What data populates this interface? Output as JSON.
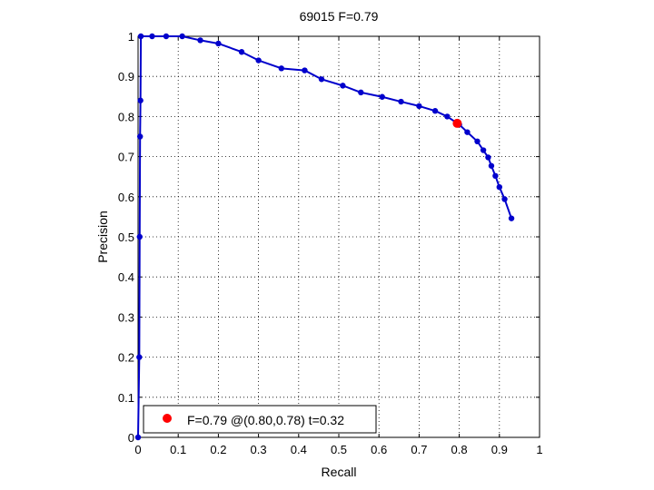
{
  "chart_data": {
    "type": "line",
    "title": "69015 F=0.79",
    "xlabel": "Recall",
    "ylabel": "Precision",
    "xlim": [
      0,
      1
    ],
    "ylim": [
      0,
      1
    ],
    "xticks": [
      "0",
      "0.1",
      "0.2",
      "0.3",
      "0.4",
      "0.5",
      "0.6",
      "0.7",
      "0.8",
      "0.9",
      "1"
    ],
    "yticks": [
      "0",
      "0.1",
      "0.2",
      "0.3",
      "0.4",
      "0.5",
      "0.6",
      "0.7",
      "0.8",
      "0.9",
      "1"
    ],
    "grid": true,
    "legend_position": "bottom-left",
    "series": [
      {
        "color": "#0000cc",
        "points": [
          [
            0.0,
            0.0
          ],
          [
            0.003,
            0.2
          ],
          [
            0.004,
            0.5
          ],
          [
            0.005,
            0.75
          ],
          [
            0.006,
            0.84
          ],
          [
            0.007,
            1.0
          ],
          [
            0.035,
            1.0
          ],
          [
            0.07,
            1.0
          ],
          [
            0.11,
            1.0
          ],
          [
            0.155,
            0.99
          ],
          [
            0.2,
            0.982
          ],
          [
            0.258,
            0.961
          ],
          [
            0.3,
            0.94
          ],
          [
            0.357,
            0.92
          ],
          [
            0.415,
            0.915
          ],
          [
            0.457,
            0.893
          ],
          [
            0.51,
            0.877
          ],
          [
            0.555,
            0.86
          ],
          [
            0.608,
            0.849
          ],
          [
            0.655,
            0.837
          ],
          [
            0.7,
            0.826
          ],
          [
            0.74,
            0.814
          ],
          [
            0.77,
            0.8
          ],
          [
            0.8,
            0.78
          ],
          [
            0.82,
            0.761
          ],
          [
            0.845,
            0.738
          ],
          [
            0.86,
            0.716
          ],
          [
            0.872,
            0.698
          ],
          [
            0.88,
            0.677
          ],
          [
            0.89,
            0.652
          ],
          [
            0.9,
            0.624
          ],
          [
            0.913,
            0.594
          ],
          [
            0.93,
            0.546
          ]
        ]
      }
    ],
    "highlight": {
      "label": "F=0.79 @(0.80,0.78) t=0.32",
      "x": 0.795,
      "y": 0.783,
      "color": "#ff0000"
    }
  }
}
